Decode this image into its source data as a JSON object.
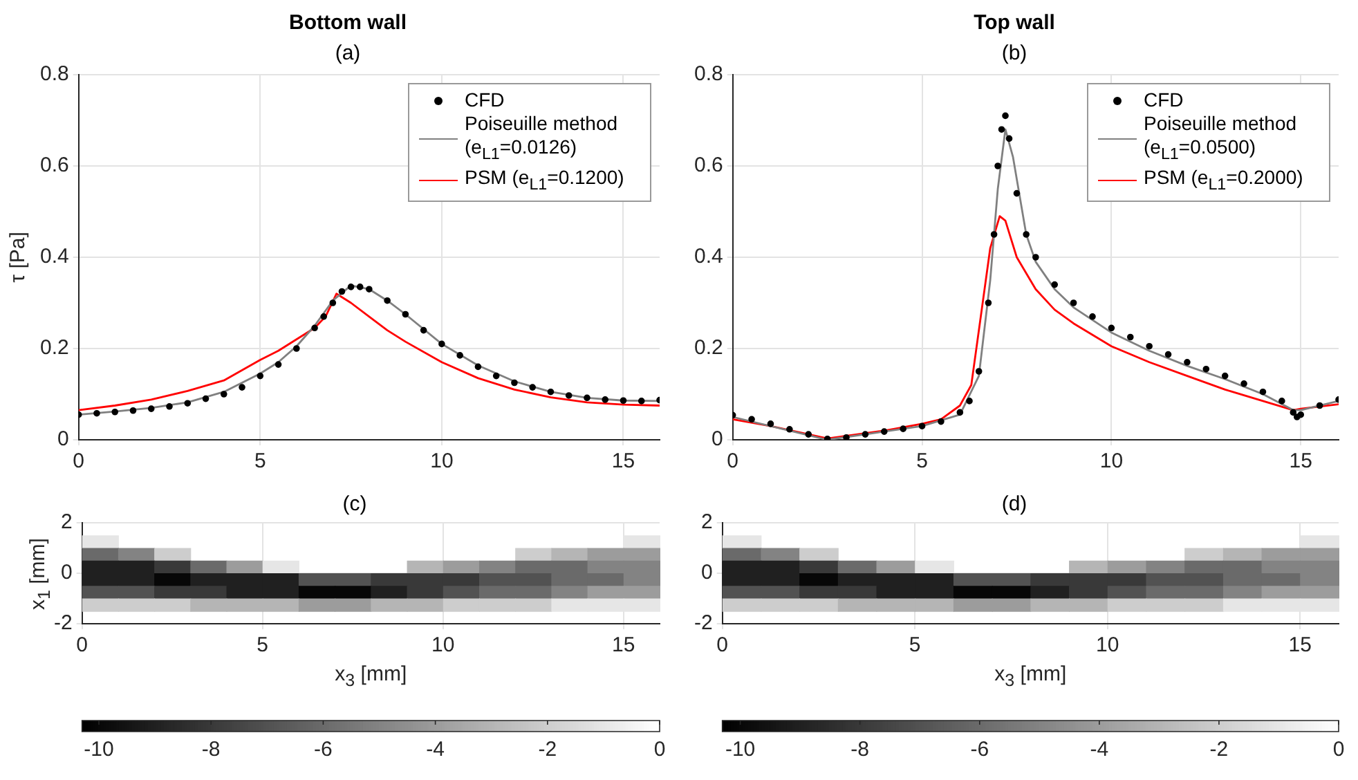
{
  "chart_data": [
    {
      "type": "line",
      "title": "Bottom wall",
      "subtitle": "(a)",
      "ylabel": "τ [Pa]",
      "xlim": [
        0,
        16
      ],
      "xticks": [
        0,
        5,
        10,
        15
      ],
      "ylim": [
        0,
        0.8
      ],
      "yticks": [
        0,
        0.2,
        0.4,
        0.6,
        0.8
      ],
      "grid": true,
      "legend": "top right",
      "series": [
        {
          "name": "CFD",
          "type": "scatter",
          "marker": "circle",
          "color": "#000000",
          "x": [
            0,
            0.5,
            1,
            1.5,
            2,
            2.5,
            3,
            3.5,
            4,
            4.5,
            5,
            5.5,
            6,
            6.5,
            6.75,
            7,
            7.25,
            7.5,
            7.75,
            8,
            8.5,
            9,
            9.5,
            10,
            10.5,
            11,
            11.5,
            12,
            12.5,
            13,
            13.5,
            14,
            14.5,
            15,
            15.5,
            16
          ],
          "values": [
            0.055,
            0.058,
            0.061,
            0.064,
            0.068,
            0.073,
            0.08,
            0.09,
            0.1,
            0.115,
            0.14,
            0.165,
            0.2,
            0.245,
            0.27,
            0.3,
            0.325,
            0.335,
            0.335,
            0.33,
            0.305,
            0.275,
            0.24,
            0.21,
            0.185,
            0.16,
            0.14,
            0.125,
            0.115,
            0.105,
            0.097,
            0.092,
            0.088,
            0.086,
            0.085,
            0.087
          ]
        },
        {
          "name": "Poiseuille method (e$_{L1}$=0.0126)",
          "type": "line",
          "color": "#808080",
          "x": [
            0,
            1,
            2,
            3,
            4,
            5,
            5.5,
            6,
            6.5,
            7,
            7.5,
            8,
            8.5,
            9,
            10,
            11,
            12,
            13,
            14,
            15,
            16
          ],
          "values": [
            0.055,
            0.062,
            0.07,
            0.082,
            0.105,
            0.145,
            0.17,
            0.205,
            0.25,
            0.305,
            0.338,
            0.33,
            0.305,
            0.275,
            0.21,
            0.163,
            0.128,
            0.105,
            0.092,
            0.086,
            0.085
          ]
        },
        {
          "name": "PSM (e$_{L1}$=0.1200)",
          "type": "line",
          "color": "#ff0000",
          "x": [
            0,
            1,
            2,
            3,
            4,
            5,
            5.5,
            6,
            6.5,
            6.8,
            7.1,
            7.5,
            8,
            8.5,
            9,
            10,
            11,
            12,
            13,
            14,
            15,
            16
          ],
          "values": [
            0.065,
            0.075,
            0.088,
            0.107,
            0.13,
            0.175,
            0.195,
            0.22,
            0.245,
            0.27,
            0.32,
            0.3,
            0.27,
            0.24,
            0.215,
            0.17,
            0.135,
            0.11,
            0.093,
            0.082,
            0.077,
            0.075
          ]
        }
      ]
    },
    {
      "type": "line",
      "title": "Top wall",
      "subtitle": "(b)",
      "xlim": [
        0,
        16
      ],
      "xticks": [
        0,
        5,
        10,
        15
      ],
      "ylim": [
        0,
        0.8
      ],
      "yticks": [
        0,
        0.2,
        0.4,
        0.6,
        0.8
      ],
      "grid": true,
      "legend": "top right",
      "series": [
        {
          "name": "CFD",
          "type": "scatter",
          "marker": "circle",
          "color": "#000000",
          "x": [
            0,
            0.5,
            1,
            1.5,
            2,
            2.5,
            3,
            3.5,
            4,
            4.5,
            5,
            5.5,
            6,
            6.25,
            6.5,
            6.75,
            6.9,
            7,
            7.1,
            7.2,
            7.3,
            7.5,
            7.75,
            8,
            8.5,
            9,
            9.5,
            10,
            10.5,
            11,
            11.5,
            12,
            12.5,
            13,
            13.5,
            14,
            14.5,
            14.8,
            14.9,
            15,
            15.5,
            16
          ],
          "values": [
            0.054,
            0.045,
            0.035,
            0.023,
            0.012,
            0.002,
            0.005,
            0.012,
            0.018,
            0.024,
            0.03,
            0.04,
            0.06,
            0.085,
            0.15,
            0.3,
            0.45,
            0.6,
            0.68,
            0.71,
            0.66,
            0.54,
            0.45,
            0.4,
            0.34,
            0.3,
            0.27,
            0.245,
            0.225,
            0.205,
            0.187,
            0.17,
            0.155,
            0.14,
            0.123,
            0.105,
            0.085,
            0.06,
            0.05,
            0.055,
            0.075,
            0.088
          ]
        },
        {
          "name": "Poiseuille method (e$_{L1}$=0.0500)",
          "type": "line",
          "color": "#808080",
          "x": [
            0,
            2.5,
            5,
            6,
            6.5,
            6.8,
            7,
            7.2,
            7.4,
            7.75,
            8,
            8.5,
            9,
            10,
            11,
            12,
            13,
            14,
            14.8,
            15,
            16
          ],
          "values": [
            0.05,
            0.0,
            0.03,
            0.055,
            0.14,
            0.35,
            0.55,
            0.68,
            0.62,
            0.45,
            0.39,
            0.33,
            0.29,
            0.235,
            0.195,
            0.162,
            0.133,
            0.1,
            0.065,
            0.065,
            0.085
          ]
        },
        {
          "name": "PSM (e$_{L1}$=0.2000)",
          "type": "line",
          "color": "#ff0000",
          "x": [
            0,
            1,
            2.5,
            4,
            5,
            5.5,
            6,
            6.3,
            6.6,
            6.8,
            7.05,
            7.2,
            7.5,
            8,
            8.5,
            9,
            10,
            11,
            12,
            13,
            14,
            14.8,
            15,
            16
          ],
          "values": [
            0.045,
            0.03,
            0.003,
            0.02,
            0.035,
            0.045,
            0.075,
            0.12,
            0.3,
            0.42,
            0.49,
            0.48,
            0.4,
            0.33,
            0.285,
            0.255,
            0.205,
            0.17,
            0.14,
            0.11,
            0.085,
            0.065,
            0.068,
            0.078
          ]
        }
      ]
    },
    {
      "type": "heatmap",
      "title": "(c)",
      "xlabel": "x$_{3}$ [mm]",
      "ylabel": "x$_{1}$ [mm]",
      "xlim": [
        0,
        16
      ],
      "xticks": [
        0,
        5,
        10,
        15
      ],
      "ylim": [
        -2,
        2
      ],
      "yticks": [
        -2,
        0,
        2
      ],
      "grid": true,
      "clim": [
        -10.3,
        0
      ],
      "cticks": [
        -10,
        -8,
        -6,
        -4,
        -2,
        0
      ],
      "x": [
        0.5,
        1.5,
        2.5,
        3.5,
        4.5,
        5.5,
        6.5,
        7.5,
        8.5,
        9.5,
        10.5,
        11.5,
        12.5,
        13.5,
        14.5,
        15.5
      ],
      "y": [
        1.25,
        0.75,
        0.25,
        -0.25,
        -0.75,
        -1.25
      ],
      "cells": [
        [
          -1,
          null,
          null,
          null,
          null,
          null,
          null,
          null,
          null,
          null,
          null,
          null,
          null,
          null,
          null,
          -1
        ],
        [
          -6,
          -5,
          -2,
          null,
          null,
          null,
          null,
          null,
          null,
          null,
          null,
          null,
          -2,
          -3,
          -4,
          -4
        ],
        [
          -9,
          -9,
          -8,
          -6,
          -4,
          -1,
          null,
          null,
          null,
          -3,
          -4,
          -5,
          -6,
          -6,
          -5,
          -5
        ],
        [
          -9,
          -9,
          -10,
          -9,
          -9,
          -9,
          -7,
          -7,
          -8,
          -8,
          -8,
          -7,
          -7,
          -6,
          -6,
          -5
        ],
        [
          -7,
          -7,
          -8,
          -8,
          -9,
          -9,
          -10,
          -10,
          -9,
          -8,
          -7,
          -6,
          -6,
          -5,
          -4,
          -4
        ],
        [
          -2,
          -2,
          -2,
          -3,
          -3,
          -3,
          -4,
          -4,
          -3,
          -3,
          -2,
          -2,
          -2,
          -1,
          -1,
          -1
        ]
      ]
    },
    {
      "type": "heatmap",
      "title": "(d)",
      "xlabel": "x$_{3}$ [mm]",
      "xlim": [
        0,
        16
      ],
      "xticks": [
        0,
        5,
        10,
        15
      ],
      "ylim": [
        -2,
        2
      ],
      "yticks": [
        -2,
        0,
        2
      ],
      "grid": true,
      "clim": [
        -10.3,
        0
      ],
      "cticks": [
        -10,
        -8,
        -6,
        -4,
        -2,
        0
      ],
      "x": [
        0.5,
        1.5,
        2.5,
        3.5,
        4.5,
        5.5,
        6.5,
        7.5,
        8.5,
        9.5,
        10.5,
        11.5,
        12.5,
        13.5,
        14.5,
        15.5
      ],
      "y": [
        1.25,
        0.75,
        0.25,
        -0.25,
        -0.75,
        -1.25
      ],
      "cells": [
        [
          -1,
          null,
          null,
          null,
          null,
          null,
          null,
          null,
          null,
          null,
          null,
          null,
          null,
          null,
          null,
          -1
        ],
        [
          -6,
          -5,
          -2,
          null,
          null,
          null,
          null,
          null,
          null,
          null,
          null,
          null,
          -2,
          -3,
          -4,
          -4
        ],
        [
          -9,
          -9,
          -8,
          -6,
          -4,
          -1,
          null,
          null,
          null,
          -3,
          -4,
          -5,
          -6,
          -6,
          -5,
          -5
        ],
        [
          -9,
          -9,
          -10,
          -9,
          -9,
          -9,
          -7,
          -7,
          -8,
          -8,
          -8,
          -7,
          -7,
          -6,
          -6,
          -5
        ],
        [
          -7,
          -7,
          -8,
          -8,
          -9,
          -9,
          -10,
          -10,
          -9,
          -8,
          -7,
          -6,
          -6,
          -5,
          -4,
          -4
        ],
        [
          -2,
          -2,
          -2,
          -3,
          -3,
          -3,
          -4,
          -4,
          -3,
          -3,
          -2,
          -2,
          -2,
          -1,
          -1,
          -1
        ]
      ]
    }
  ]
}
